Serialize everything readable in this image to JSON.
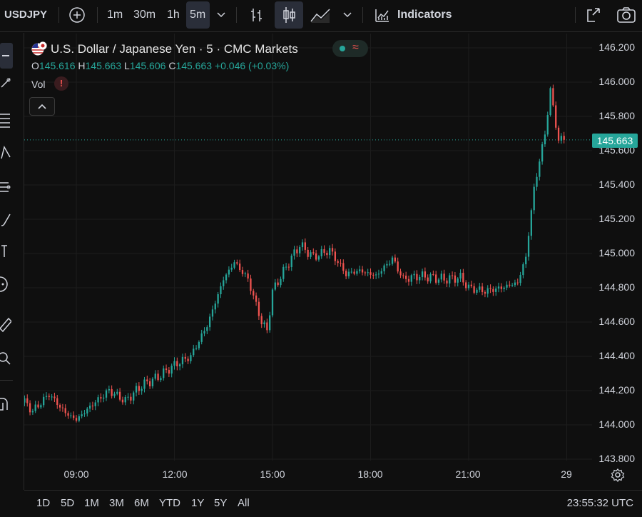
{
  "toolbar": {
    "symbol": "USDJPY",
    "intervals": [
      "1m",
      "30m",
      "1h",
      "5m"
    ],
    "active_interval": "5m",
    "indicators_label": "Indicators"
  },
  "legend": {
    "title": "U.S. Dollar / Japanese Yen · 5 · CMC Markets",
    "open_label": "O",
    "open": "145.616",
    "high_label": "H",
    "high": "145.663",
    "low_label": "L",
    "low": "145.606",
    "close_label": "C",
    "close": "145.663",
    "change": "+0.046 (+0.03%)",
    "vol_label": "Vol",
    "vol_warning": "!",
    "status_symbol": "≈"
  },
  "price_axis": {
    "labels": [
      "146.200",
      "146.000",
      "145.800",
      "145.600",
      "145.400",
      "145.200",
      "145.000",
      "144.800",
      "144.600",
      "144.400",
      "144.200",
      "144.000",
      "143.800"
    ],
    "last_price": "145.663"
  },
  "time_axis": {
    "labels": [
      "09:00",
      "12:00",
      "15:00",
      "18:00",
      "21:00",
      "29"
    ]
  },
  "ranges": [
    "1D",
    "5D",
    "1M",
    "3M",
    "6M",
    "YTD",
    "1Y",
    "5Y",
    "All"
  ],
  "clock": "23:55:32 UTC",
  "colors": {
    "up": "#26a69a",
    "down": "#ef5350",
    "background": "#0f0f0f",
    "last_price_bg": "#26a69a"
  },
  "chart_data": {
    "type": "candlestick",
    "interval": "5m",
    "ylim": [
      143.8,
      146.2
    ],
    "last_price": 145.663,
    "series": [
      {
        "name": "USDJPY",
        "anchors": [
          {
            "t": "07:00",
            "close": 144.28
          },
          {
            "t": "07:15",
            "close": 144.17
          },
          {
            "t": "07:40",
            "close": 144.08
          },
          {
            "t": "08:10",
            "close": 144.18
          },
          {
            "t": "08:40",
            "close": 144.07
          },
          {
            "t": "09:00",
            "close": 144.03
          },
          {
            "t": "09:30",
            "close": 144.12
          },
          {
            "t": "10:00",
            "close": 144.2
          },
          {
            "t": "10:30",
            "close": 144.14
          },
          {
            "t": "11:00",
            "close": 144.23
          },
          {
            "t": "11:30",
            "close": 144.28
          },
          {
            "t": "12:00",
            "close": 144.35
          },
          {
            "t": "12:30",
            "close": 144.4
          },
          {
            "t": "13:00",
            "close": 144.58
          },
          {
            "t": "13:30",
            "close": 144.85
          },
          {
            "t": "13:50",
            "close": 144.95
          },
          {
            "t": "14:15",
            "close": 144.85
          },
          {
            "t": "14:40",
            "close": 144.6
          },
          {
            "t": "14:50",
            "close": 144.55
          },
          {
            "t": "15:00",
            "close": 144.78
          },
          {
            "t": "15:30",
            "close": 144.95
          },
          {
            "t": "15:50",
            "close": 145.05
          },
          {
            "t": "16:15",
            "close": 144.98
          },
          {
            "t": "16:45",
            "close": 145.02
          },
          {
            "t": "17:15",
            "close": 144.88
          },
          {
            "t": "17:40",
            "close": 144.9
          },
          {
            "t": "18:10",
            "close": 144.87
          },
          {
            "t": "18:40",
            "close": 144.97
          },
          {
            "t": "19:00",
            "close": 144.85
          },
          {
            "t": "19:30",
            "close": 144.87
          },
          {
            "t": "20:15",
            "close": 144.85
          },
          {
            "t": "20:45",
            "close": 144.86
          },
          {
            "t": "21:00",
            "close": 144.8
          },
          {
            "t": "21:30",
            "close": 144.78
          },
          {
            "t": "22:00",
            "close": 144.8
          },
          {
            "t": "22:30",
            "close": 144.83
          },
          {
            "t": "22:45",
            "close": 144.98
          },
          {
            "t": "23:00",
            "close": 145.38
          },
          {
            "t": "23:20",
            "close": 145.7
          },
          {
            "t": "23:30",
            "close": 145.95
          },
          {
            "t": "23:45",
            "close": 145.66
          },
          {
            "t": "23:55",
            "close": 145.663
          }
        ]
      }
    ]
  }
}
